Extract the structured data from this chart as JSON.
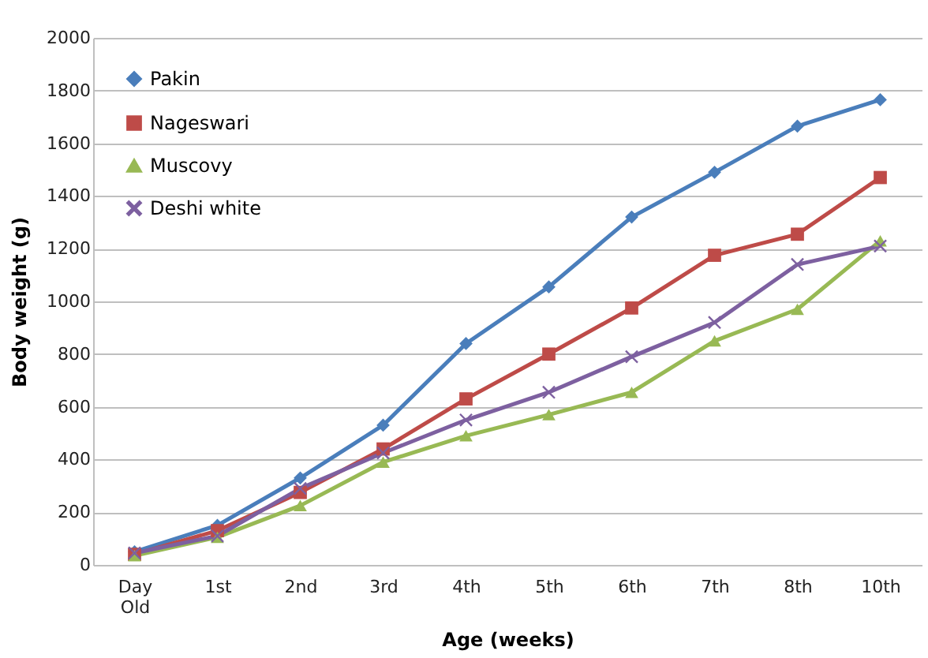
{
  "chart_data": {
    "type": "line",
    "xlabel": "Age (weeks)",
    "ylabel": "Body weight (g)",
    "categories": [
      "Day Old",
      "1st",
      "2nd",
      "3rd",
      "4th",
      "5th",
      "6th",
      "7th",
      "8th",
      "10th"
    ],
    "series": [
      {
        "name": "Pakin",
        "color": "#4a7ebb",
        "marker": "diamond",
        "values": [
          50,
          150,
          330,
          530,
          840,
          1055,
          1320,
          1490,
          1665,
          1765
        ]
      },
      {
        "name": "Nageswari",
        "color": "#be4b48",
        "marker": "square",
        "values": [
          40,
          130,
          275,
          440,
          630,
          800,
          975,
          1175,
          1255,
          1470
        ]
      },
      {
        "name": "Muscovy",
        "color": "#98b954",
        "marker": "triangle",
        "values": [
          35,
          105,
          225,
          390,
          490,
          570,
          655,
          850,
          970,
          1230
        ]
      },
      {
        "name": "Deshi white",
        "color": "#7d60a0",
        "marker": "cross",
        "values": [
          45,
          110,
          290,
          425,
          550,
          655,
          790,
          920,
          1140,
          1210
        ]
      }
    ],
    "ylim": [
      0,
      2000
    ],
    "yticks": [
      0,
      200,
      400,
      600,
      800,
      1000,
      1200,
      1400,
      1600,
      1800,
      2000
    ],
    "grid": "y",
    "legend": "top left",
    "line_style": "solid"
  }
}
